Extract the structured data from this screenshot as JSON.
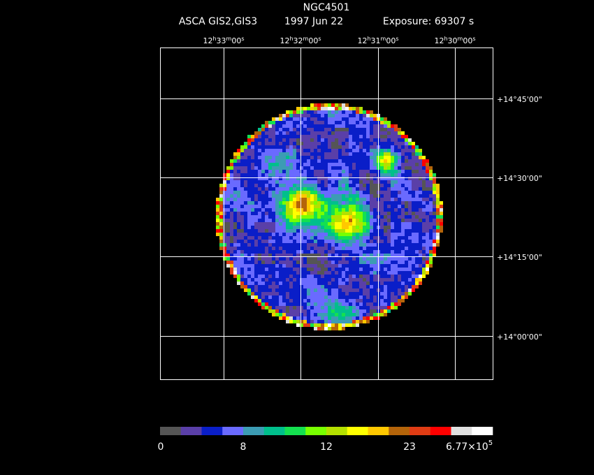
{
  "header": {
    "title": "NGC4501",
    "instrument": "ASCA GIS2,GIS3",
    "date": "1997 Jun 22",
    "exposure": "Exposure: 69307 s"
  },
  "ra_labels": [
    [
      "12",
      "h",
      "33",
      "m",
      "00",
      "s"
    ],
    [
      "12",
      "h",
      "32",
      "m",
      "00",
      "s"
    ],
    [
      "12",
      "h",
      "31",
      "m",
      "00",
      "s"
    ],
    [
      "12",
      "h",
      "30",
      "m",
      "00",
      "s"
    ]
  ],
  "dec_labels": [
    "+14°45'00\"",
    "+14°30'00\"",
    "+14°15'00\"",
    "+14°00'00\""
  ],
  "colorbar": {
    "colors": [
      "#555555",
      "#5a3fa8",
      "#0a1ec8",
      "#6a6aff",
      "#3c9cb4",
      "#00bf8c",
      "#14e050",
      "#78ff00",
      "#b4e000",
      "#ffff00",
      "#ffc800",
      "#b4640a",
      "#e03c14",
      "#ff0000",
      "#e0e0e0",
      "#ffffff"
    ],
    "labels": [
      "0",
      "8",
      "12",
      "23"
    ],
    "max_label": [
      "6.77×10",
      "5"
    ]
  }
}
